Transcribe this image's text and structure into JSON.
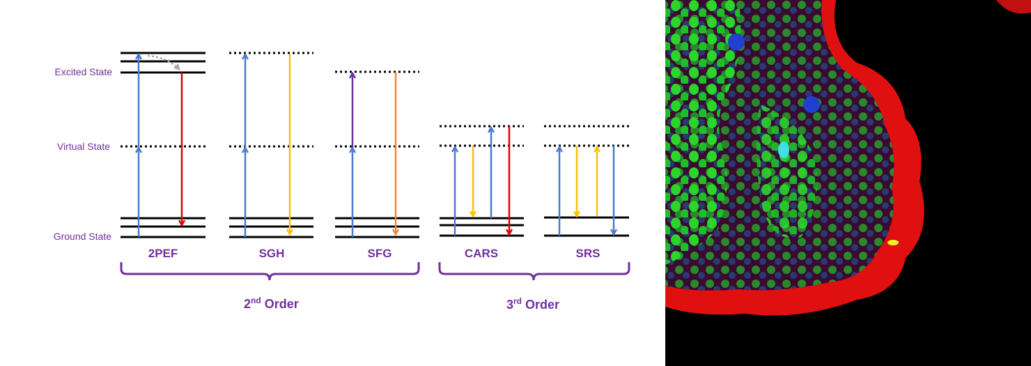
{
  "levels": {
    "excited": "Excited State",
    "virtual": "Virtual State",
    "ground": "Ground State"
  },
  "processes": [
    "2PEF",
    "SGH",
    "SFG",
    "CARS",
    "SRS"
  ],
  "groups": [
    {
      "number": "2",
      "suffix": "nd",
      "word": "Order"
    },
    {
      "number": "3",
      "suffix": "rd",
      "word": "Order"
    }
  ]
}
